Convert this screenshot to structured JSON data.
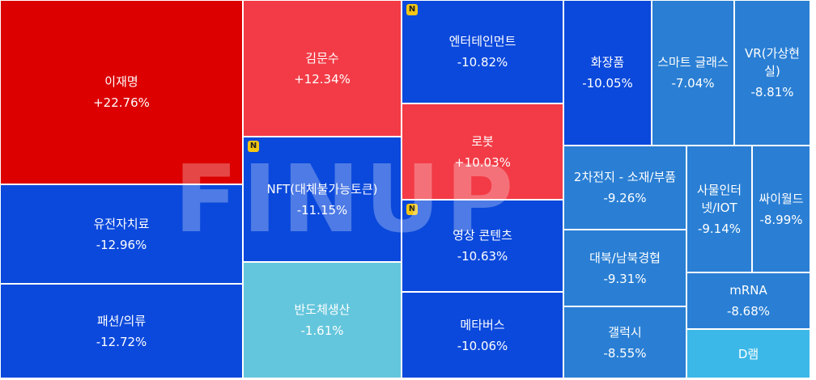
{
  "watermark": "FINUP",
  "badge_label": "N",
  "chart_data": {
    "type": "treemap",
    "items": [
      {
        "name": "이재명",
        "change": "+22.76%",
        "value": 22.76,
        "color": "#dc0000"
      },
      {
        "name": "유전자치료",
        "change": "-12.96%",
        "value": -12.96,
        "color": "#0b49dc"
      },
      {
        "name": "패션/의류",
        "change": "-12.72%",
        "value": -12.72,
        "color": "#0b49dc"
      },
      {
        "name": "김문수",
        "change": "+12.34%",
        "value": 12.34,
        "color": "#f23b46"
      },
      {
        "name": "NFT(대체불가능토큰)",
        "change": "-11.15%",
        "value": -11.15,
        "color": "#0b49dc",
        "badge": true
      },
      {
        "name": "반도체생산",
        "change": "-1.61%",
        "value": -1.61,
        "color": "#64c6dc"
      },
      {
        "name": "엔터테인먼트",
        "change": "-10.82%",
        "value": -10.82,
        "color": "#0b49dc",
        "badge": true
      },
      {
        "name": "로봇",
        "change": "+10.03%",
        "value": 10.03,
        "color": "#f23b46"
      },
      {
        "name": "영상 콘텐츠",
        "change": "-10.63%",
        "value": -10.63,
        "color": "#0b49dc",
        "badge": true
      },
      {
        "name": "메타버스",
        "change": "-10.06%",
        "value": -10.06,
        "color": "#0b49dc"
      },
      {
        "name": "화장품",
        "change": "-10.05%",
        "value": -10.05,
        "color": "#0b49dc"
      },
      {
        "name": "스마트 글래스",
        "change": "-7.04%",
        "value": -7.04,
        "color": "#2a7fd4"
      },
      {
        "name": "VR(가상현실)",
        "change": "-8.81%",
        "value": -8.81,
        "color": "#2a7fd4"
      },
      {
        "name": "2차전지 - 소재/부품",
        "change": "-9.26%",
        "value": -9.26,
        "color": "#2a7fd4"
      },
      {
        "name": "사물인터넷/IOT",
        "change": "-9.14%",
        "value": -9.14,
        "color": "#2a7fd4"
      },
      {
        "name": "싸이월드",
        "change": "-8.99%",
        "value": -8.99,
        "color": "#2a7fd4"
      },
      {
        "name": "대북/남북경협",
        "change": "-9.31%",
        "value": -9.31,
        "color": "#2a7fd4"
      },
      {
        "name": "mRNA",
        "change": "-8.68%",
        "value": -8.68,
        "color": "#2a7fd4"
      },
      {
        "name": "갤럭시",
        "change": "-8.55%",
        "value": -8.55,
        "color": "#2a7fd4"
      },
      {
        "name": "D램",
        "change": "",
        "value": null,
        "color": "#3cb8e8"
      }
    ]
  }
}
